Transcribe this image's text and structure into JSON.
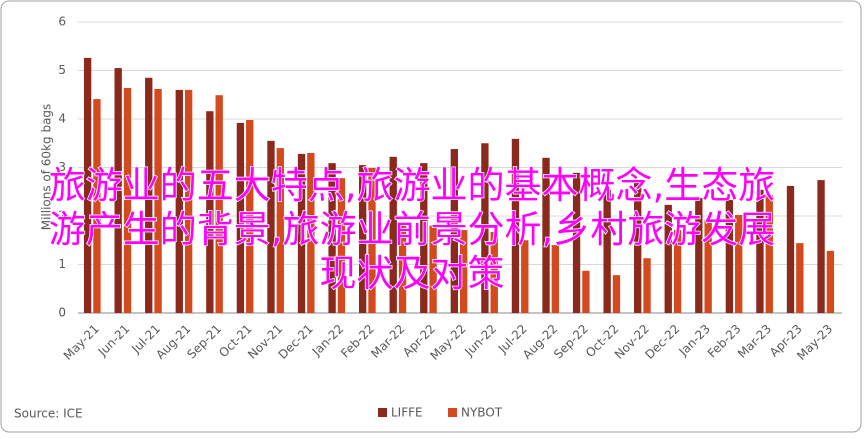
{
  "chart_data": {
    "type": "bar",
    "y_label": "Millions of 60kg bags",
    "source": "Source: ICE",
    "categories": [
      "May-21",
      "Jun-21",
      "Jul-21",
      "Aug-21",
      "Sep-21",
      "Oct-21",
      "Nov-21",
      "Dec-21",
      "Jan-22",
      "Feb-22",
      "Mar-22",
      "Apr-22",
      "May-22",
      "Jun-22",
      "Jul-22",
      "Aug-22",
      "Sep-22",
      "Oct-22",
      "Nov-22",
      "Dec-22",
      "Jan-23",
      "Feb-23",
      "Mar-23",
      "Apr-23",
      "May-23"
    ],
    "series": [
      {
        "name": "LIFFE",
        "color": "#8b2a1c",
        "values": [
          5.26,
          5.05,
          4.85,
          4.6,
          4.16,
          3.92,
          3.55,
          3.28,
          3.09,
          3.05,
          3.22,
          3.09,
          3.38,
          3.5,
          3.59,
          3.2,
          2.89,
          2.54,
          2.74,
          2.23,
          2.37,
          2.33,
          2.54,
          2.62,
          2.74
        ]
      },
      {
        "name": "NYBOT",
        "color": "#d24a1e",
        "values": [
          4.41,
          4.64,
          4.62,
          4.6,
          4.49,
          3.98,
          3.4,
          3.3,
          2.78,
          2.99,
          1.81,
          1.8,
          1.71,
          1.67,
          1.5,
          1.4,
          0.87,
          0.78,
          1.13,
          1.71,
          1.92,
          2.02,
          2.43,
          1.44,
          1.28
        ]
      }
    ],
    "ylim": [
      0,
      6
    ],
    "yticks": [
      0,
      1,
      2,
      3,
      4,
      5,
      6
    ],
    "grid": true,
    "overlay_lines": [
      "旅游业的五大特点,旅游业的基本概念,生态旅",
      "游产生的背景,旅游业前景分析,乡村旅游发展",
      "现状及对策"
    ]
  }
}
